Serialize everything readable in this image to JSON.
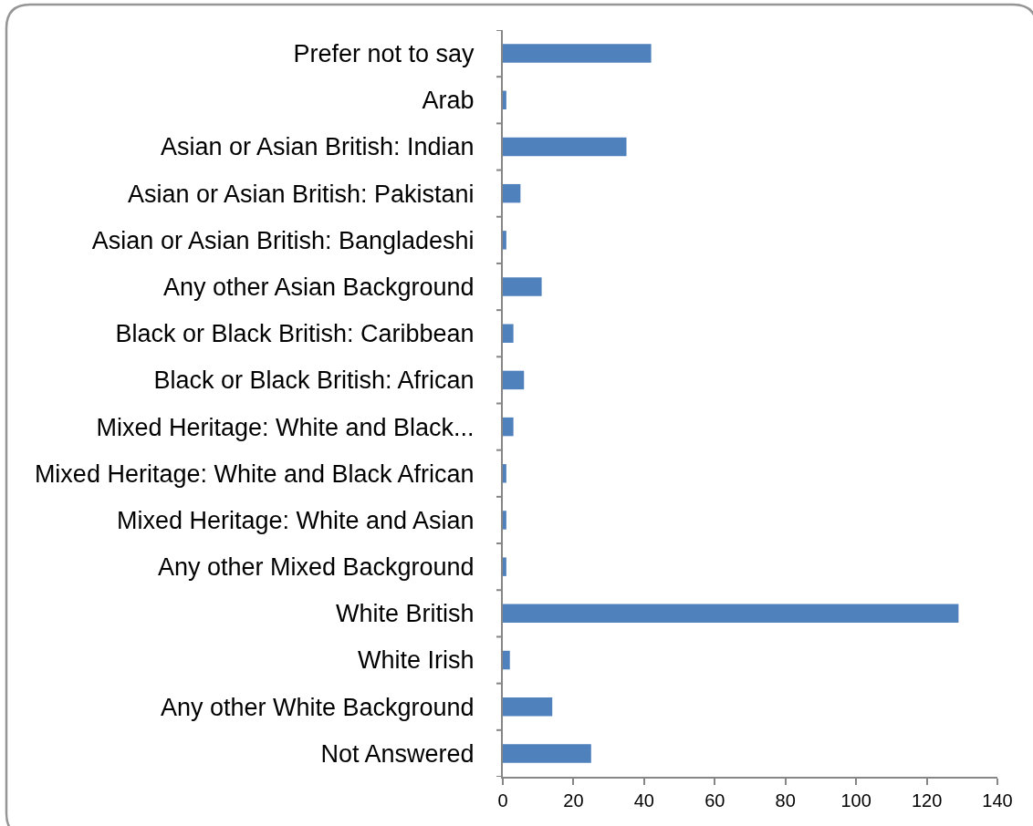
{
  "chart_data": {
    "type": "bar",
    "orientation": "horizontal",
    "categories": [
      "Prefer not to say",
      "Arab",
      "Asian or Asian British: Indian",
      "Asian or Asian British: Pakistani",
      "Asian or Asian British: Bangladeshi",
      "Any other Asian Background",
      "Black or Black British: Caribbean",
      "Black or Black British: African",
      "Mixed Heritage: White and Black...",
      "Mixed Heritage: White and Black African",
      "Mixed Heritage: White and Asian",
      "Any other Mixed Background",
      "White British",
      "White Irish",
      "Any other White Background",
      "Not Answered"
    ],
    "values": [
      42,
      1,
      35,
      5,
      1,
      11,
      3,
      6,
      3,
      1,
      1,
      1,
      129,
      2,
      14,
      25
    ],
    "color": "#4f81bd",
    "xlim": [
      0,
      140
    ],
    "xticks": [
      0,
      20,
      40,
      60,
      80,
      100,
      120,
      140
    ]
  }
}
